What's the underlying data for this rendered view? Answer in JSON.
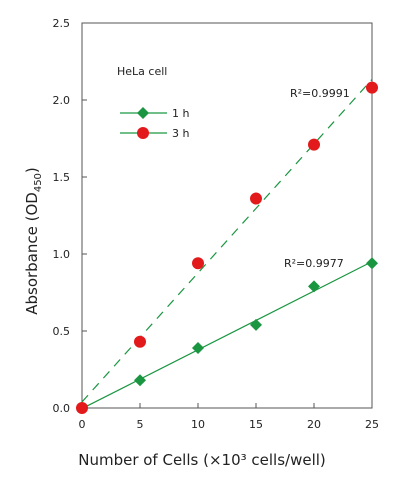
{
  "chart_data": {
    "type": "scatter",
    "annotation": "HeLa cell",
    "xlabel": "Number of Cells (×10³ cells/well)",
    "ylabel": "Absorbance (OD450)",
    "ylabel_main": "Absorbance (OD",
    "ylabel_sub": "450",
    "ylabel_close": ")",
    "xlim": [
      0,
      25
    ],
    "ylim": [
      0,
      2.5
    ],
    "x_ticks": [
      "0",
      "5",
      "10",
      "15",
      "20",
      "25"
    ],
    "y_ticks": [
      "0.0",
      "0.5",
      "1.0",
      "1.5",
      "2.0",
      "2.5"
    ],
    "grid": false,
    "legend_position": "upper-left",
    "series": [
      {
        "name": "1 h",
        "marker": "diamond",
        "color": "#1a9641",
        "fit_line": "solid",
        "r2_label": "R²=0.9977",
        "x": [
          0,
          5,
          10,
          15,
          20,
          25
        ],
        "y": [
          0.0,
          0.18,
          0.39,
          0.54,
          0.79,
          0.94
        ]
      },
      {
        "name": "3 h",
        "marker": "circle",
        "color": "#e31a1c",
        "fit_line": "dashed",
        "line_color": "#1a9641",
        "r2_label": "R²=0.9991",
        "x": [
          0,
          5,
          10,
          15,
          20,
          25
        ],
        "y": [
          0.0,
          0.43,
          0.94,
          1.36,
          1.71,
          2.08
        ]
      }
    ]
  }
}
